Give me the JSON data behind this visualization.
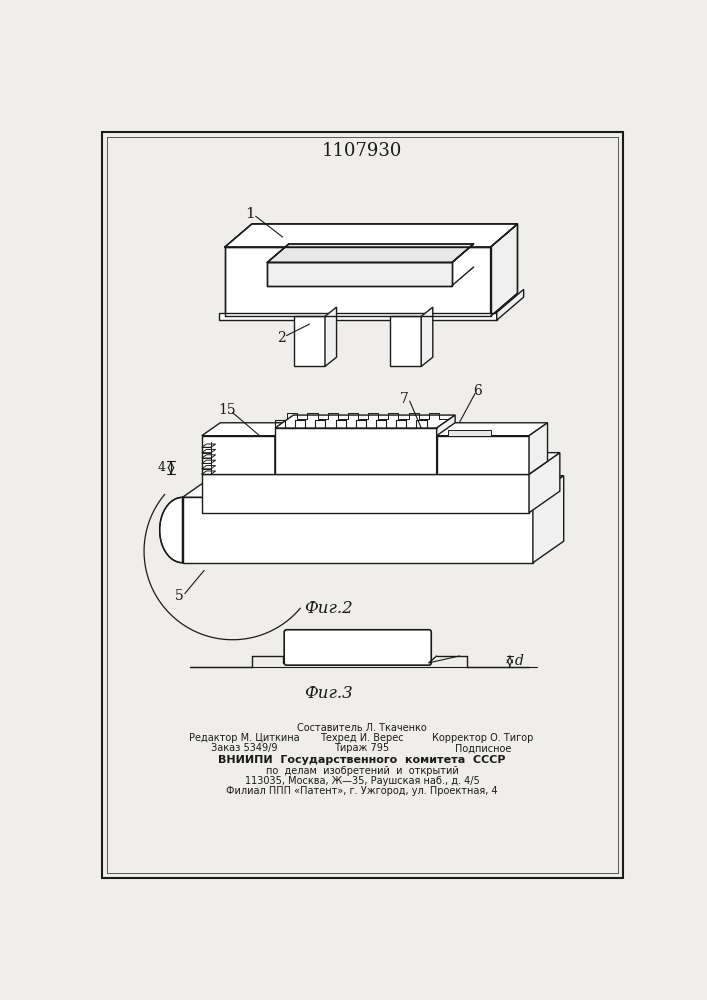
{
  "patent_number": "1107930",
  "fig2_label": "Фиг.2",
  "fig3_label": "Фиг.3",
  "footer_line0": "Составитель Л. Ткаченко",
  "footer_line1_left": "Редактор М. Циткина",
  "footer_line1_mid": "Техред И. Верес",
  "footer_line1_right": "Корректор О. Тигор",
  "footer_line2_left": "Заказ 5349/9",
  "footer_line2_mid": "Тираж 795",
  "footer_line2_right": "Подписное",
  "footer_line3": "ВНИИПИ  Государственного  комитета  СССР",
  "footer_line4": "по  делам  изобретений  и  открытий",
  "footer_line5": "113035, Москва, Ж—35, Раушская наб., д. 4/5",
  "footer_line6": "Филиал ППП «Патент», г. Ужгород, ул. Проектная, 4",
  "bg_color": "#f0eeea",
  "line_color": "#1a1a1a"
}
